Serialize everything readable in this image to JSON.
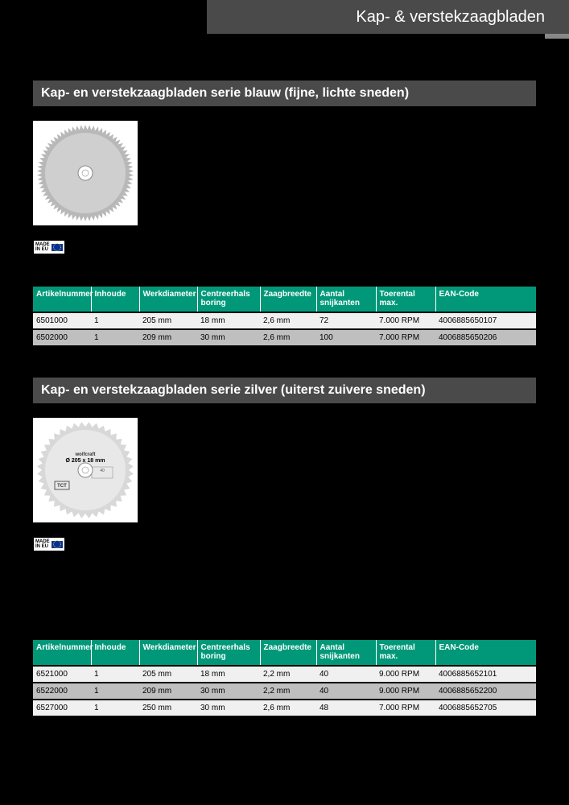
{
  "header": {
    "title": "Kap- & verstekzaagbladen"
  },
  "badge": {
    "line1": "MADE",
    "line2": "IN EU"
  },
  "columns": [
    {
      "key": "art",
      "label": "Artikelnummer"
    },
    {
      "key": "inh",
      "label": "Inhoude"
    },
    {
      "key": "wd",
      "label": "Werkdiameter"
    },
    {
      "key": "cb",
      "label": "Centreerhals boring"
    },
    {
      "key": "zb",
      "label": "Zaagbreedte"
    },
    {
      "key": "as",
      "label": "Aantal snijkan­ten"
    },
    {
      "key": "tm",
      "label": "Toerental max."
    },
    {
      "key": "ean",
      "label": "EAN-Code"
    }
  ],
  "sections": [
    {
      "title": "Kap- en verstekzaagbladen serie blauw (fijne, lichte sneden)",
      "image_style": {
        "teeth": 70,
        "outer_color": "#b8b8b8",
        "inner_color": "#cfcfcf",
        "hub_color": "#ffffff",
        "bg": "#ffffff"
      },
      "rows": [
        {
          "art": "6501000",
          "inh": "1",
          "wd": "205 mm",
          "cb": "18 mm",
          "zb": "2,6 mm",
          "as": "72",
          "tm": "7.000 RPM",
          "ean": "4006885650107",
          "alt": false
        },
        {
          "art": "6502000",
          "inh": "1",
          "wd": "209 mm",
          "cb": "30 mm",
          "zb": "2,6 mm",
          "as": "100",
          "tm": "7.000 RPM",
          "ean": "4006885650206",
          "alt": true
        }
      ],
      "gap_after_badge": 40
    },
    {
      "title": "Kap- en verstekzaagbladen serie zilver (uiterst zuivere sneden)",
      "image_style": {
        "teeth": 40,
        "outer_color": "#d8d8d8",
        "inner_color": "#e8e8e8",
        "hub_color": "#ffffff",
        "bg": "#ffffff",
        "label_line1": "wolfcraft",
        "label_line2": "Ø 205 x 18 mm",
        "label_tct": "TCT"
      },
      "rows": [
        {
          "art": "6521000",
          "inh": "1",
          "wd": "205 mm",
          "cb": "18 mm",
          "zb": "2,2 mm",
          "as": "40",
          "tm": "9.000 RPM",
          "ean": "4006885652101",
          "alt": false
        },
        {
          "art": "6522000",
          "inh": "1",
          "wd": "209 mm",
          "cb": "30 mm",
          "zb": "2,2 mm",
          "as": "40",
          "tm": "9.000 RPM",
          "ean": "4006885652200",
          "alt": true
        },
        {
          "art": "6527000",
          "inh": "1",
          "wd": "250 mm",
          "cb": "30 mm",
          "zb": "2,6 mm",
          "as": "48",
          "tm": "7.000 RPM",
          "ean": "4006885652705",
          "alt": false
        }
      ],
      "gap_after_badge": 110
    }
  ],
  "colors": {
    "page_bg": "#000000",
    "banner_bg": "#4a4a4a",
    "table_header_bg": "#009878",
    "row_bg": "#f0f0f0",
    "row_alt_bg": "#bfbfbf"
  }
}
